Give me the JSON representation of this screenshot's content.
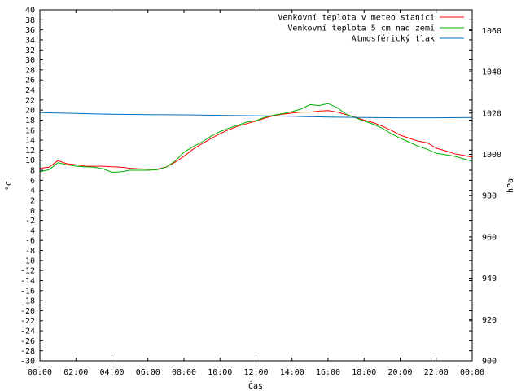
{
  "chart_data": {
    "type": "line",
    "xlabel": "Čas",
    "ylabel": "°C",
    "y2label": "hPa",
    "xlim": [
      0,
      24
    ],
    "ylim": [
      -30,
      40
    ],
    "y2lim": [
      900,
      1070
    ],
    "x_ticks": [
      "00:00",
      "02:00",
      "04:00",
      "06:00",
      "08:00",
      "10:00",
      "12:00",
      "14:00",
      "16:00",
      "18:00",
      "20:00",
      "22:00",
      "00:00"
    ],
    "y_ticks": [
      40,
      38,
      36,
      34,
      32,
      30,
      28,
      26,
      24,
      22,
      20,
      18,
      16,
      14,
      12,
      10,
      8,
      6,
      4,
      2,
      0,
      -2,
      -4,
      -6,
      -8,
      -10,
      -12,
      -14,
      -16,
      -18,
      -20,
      -22,
      -24,
      -26,
      -28,
      -30
    ],
    "y2_ticks": [
      1060,
      1040,
      1020,
      1000,
      980,
      960,
      940,
      920,
      900
    ],
    "grid": false,
    "legend_position": "top-right",
    "series": [
      {
        "name": "Venkovní teplota v meteo stanici",
        "color": "#ff0000",
        "axis": "left",
        "x": [
          0,
          0.5,
          1,
          1.5,
          2,
          2.5,
          3,
          3.5,
          4,
          4.5,
          5,
          5.5,
          6,
          6.5,
          7,
          7.5,
          8,
          8.5,
          9,
          9.5,
          10,
          10.5,
          11,
          11.5,
          12,
          12.5,
          13,
          13.5,
          14,
          14.5,
          15,
          15.5,
          16,
          16.5,
          17,
          17.5,
          18,
          18.5,
          19,
          19.5,
          20,
          20.5,
          21,
          21.5,
          22,
          22.5,
          23,
          23.5,
          24
        ],
        "values": [
          8.4,
          8.6,
          9.9,
          9.3,
          9.1,
          8.8,
          8.8,
          8.8,
          8.7,
          8.6,
          8.4,
          8.3,
          8.2,
          8.2,
          8.6,
          9.6,
          10.8,
          12.2,
          13.3,
          14.3,
          15.3,
          16.1,
          16.8,
          17.3,
          17.8,
          18.4,
          18.9,
          19.2,
          19.4,
          19.6,
          19.6,
          19.8,
          19.9,
          19.6,
          19.1,
          18.6,
          18.0,
          17.5,
          16.8,
          16.0,
          15.0,
          14.4,
          13.8,
          13.5,
          12.4,
          11.9,
          11.3,
          11.0,
          10.6
        ]
      },
      {
        "name": "Venkovní teplota 5 cm nad zemí",
        "color": "#00b000",
        "axis": "left",
        "x": [
          0,
          0.5,
          1,
          1.5,
          2,
          2.5,
          3,
          3.5,
          4,
          4.5,
          5,
          5.5,
          6,
          6.5,
          7,
          7.5,
          8,
          8.5,
          9,
          9.5,
          10,
          10.5,
          11,
          11.5,
          12,
          12.5,
          13,
          13.5,
          14,
          14.5,
          15,
          15.5,
          16,
          16.5,
          17,
          17.5,
          18,
          18.5,
          19,
          19.5,
          20,
          20.5,
          21,
          21.5,
          22,
          22.5,
          23,
          23.5,
          24
        ],
        "values": [
          7.7,
          8.1,
          9.5,
          9.1,
          8.8,
          8.7,
          8.6,
          8.3,
          7.6,
          7.7,
          8.0,
          8.0,
          8.0,
          8.1,
          8.6,
          9.8,
          11.6,
          12.7,
          13.6,
          14.8,
          15.7,
          16.4,
          17.0,
          17.6,
          17.9,
          18.6,
          19.0,
          19.3,
          19.7,
          20.2,
          21.1,
          20.9,
          21.3,
          20.5,
          19.2,
          18.5,
          17.8,
          17.2,
          16.4,
          15.3,
          14.4,
          13.6,
          12.8,
          12.2,
          11.4,
          11.1,
          10.8,
          10.3,
          9.8
        ]
      },
      {
        "name": "Atmosférický tlak",
        "color": "#0070c0",
        "axis": "right",
        "x": [
          0,
          2,
          4,
          6,
          8,
          10,
          12,
          14,
          16,
          18,
          20,
          22,
          24
        ],
        "values": [
          1020.2,
          1019.8,
          1019.4,
          1019.2,
          1019.1,
          1018.9,
          1018.7,
          1018.4,
          1018.0,
          1017.8,
          1017.7,
          1017.7,
          1017.8
        ]
      }
    ]
  }
}
